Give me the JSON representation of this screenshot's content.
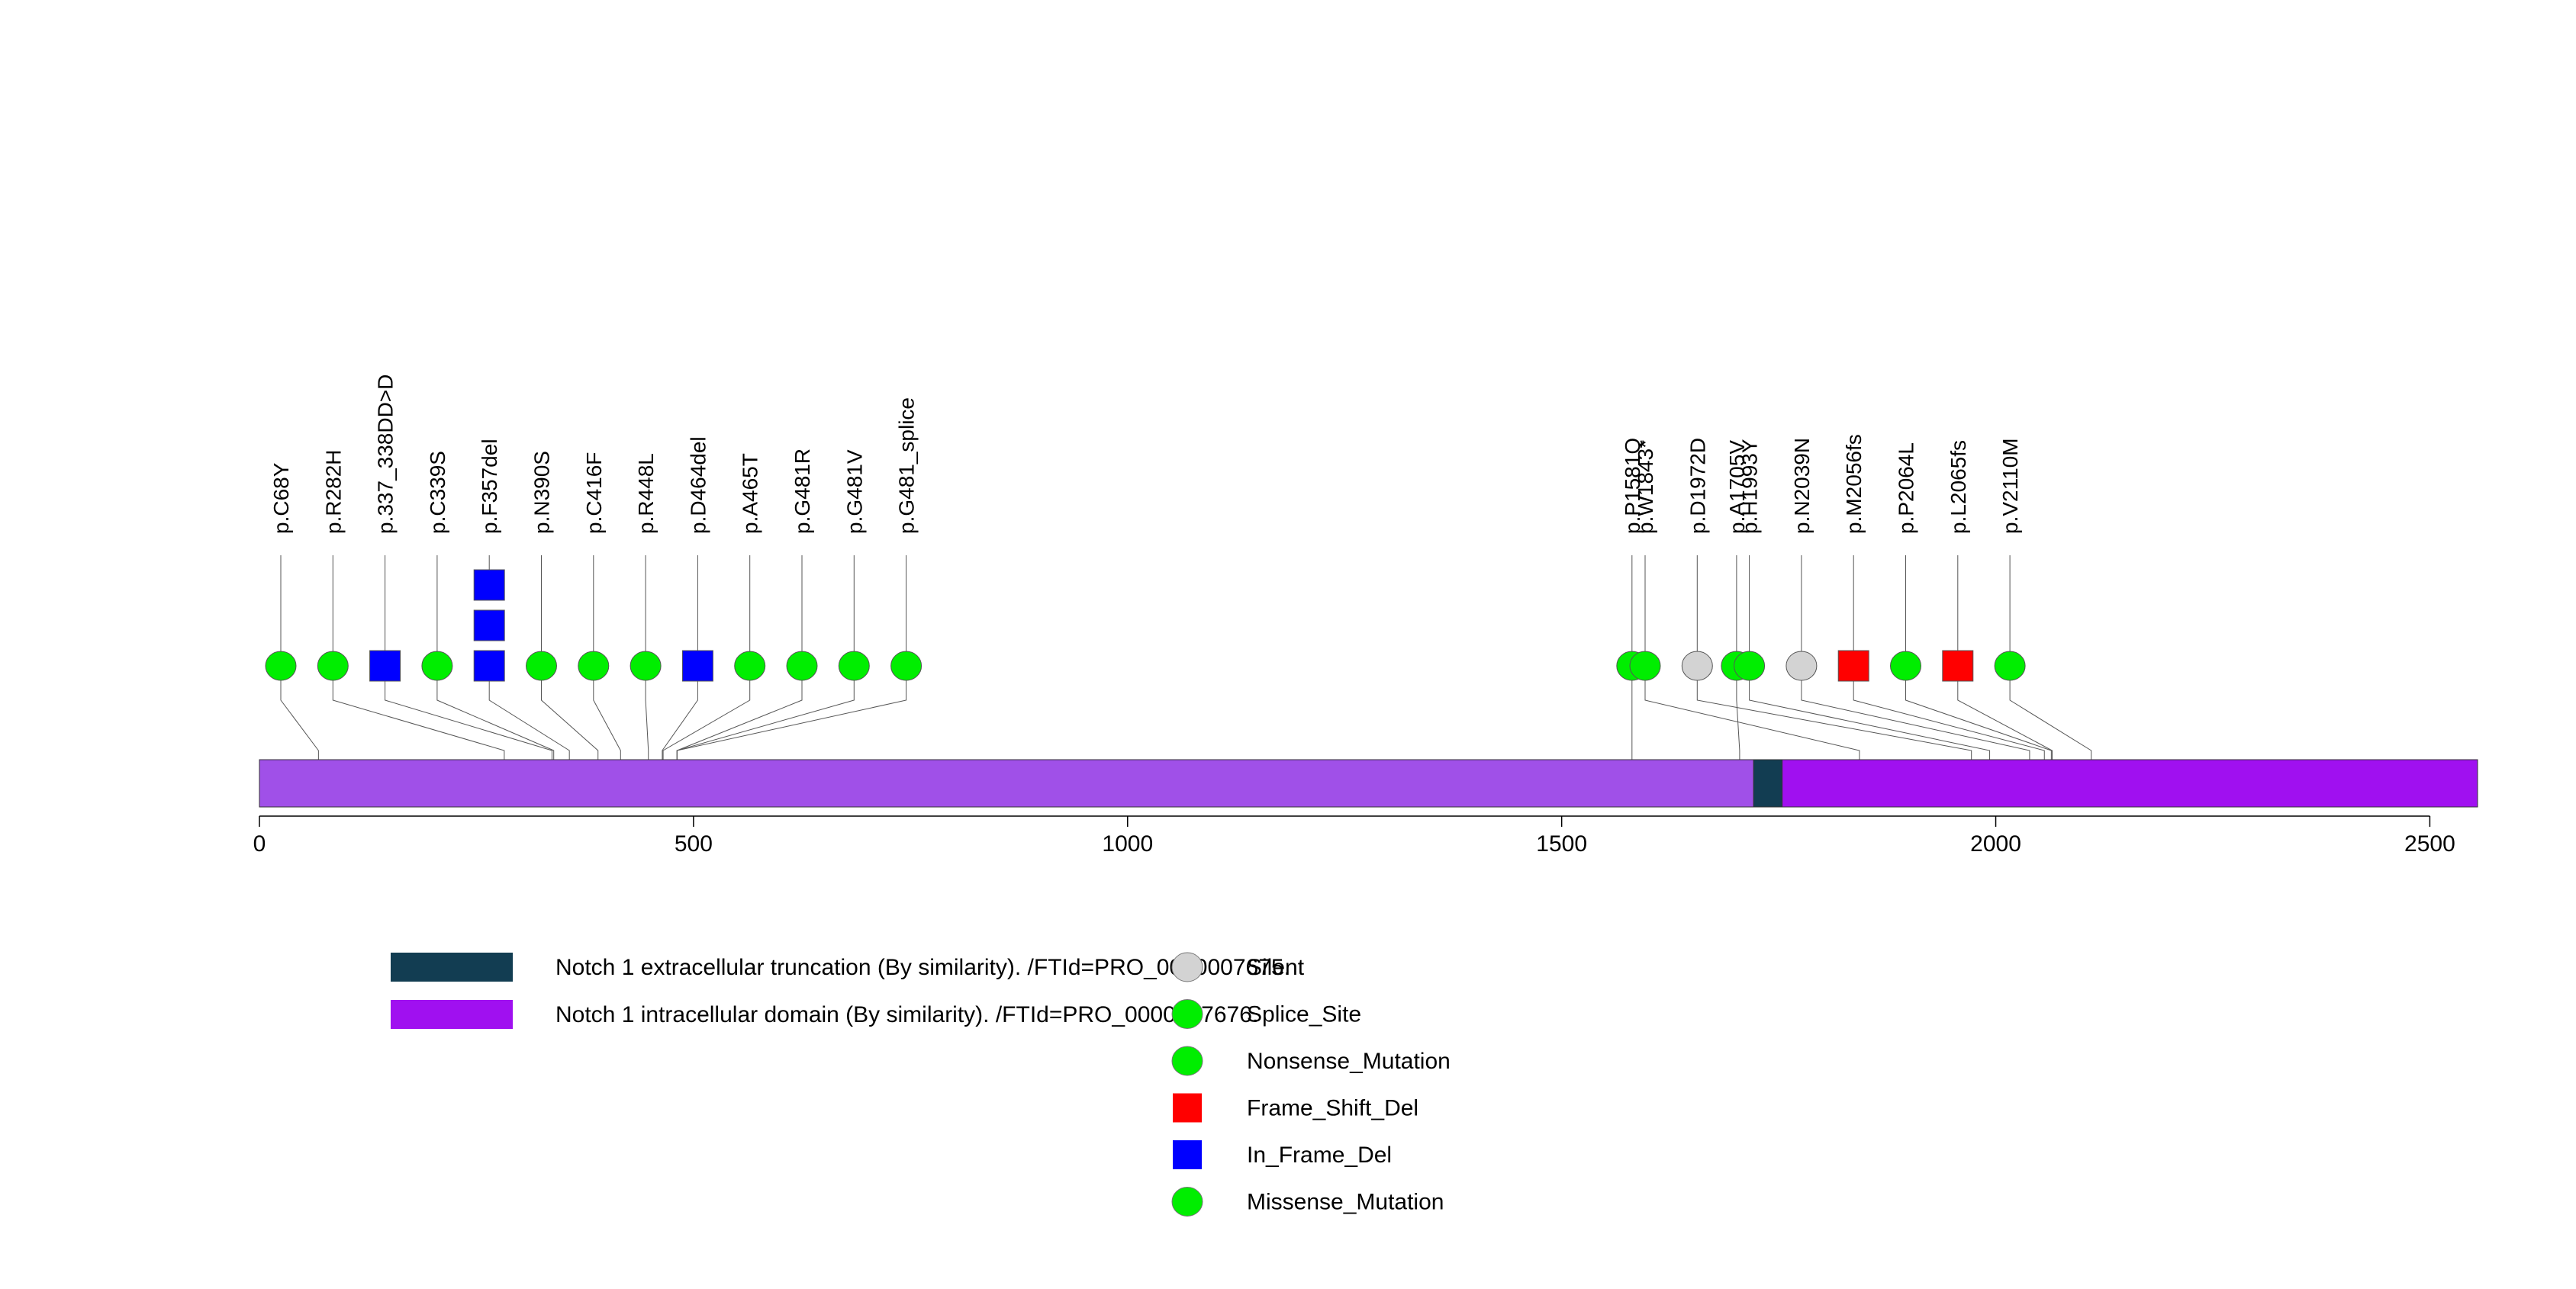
{
  "chart_data": {
    "type": "lollipop",
    "protein_length": 2555,
    "x_axis": {
      "min": 0,
      "max": 2555,
      "ticks": [
        0,
        500,
        1000,
        1500,
        2000,
        2500
      ]
    },
    "backbone_color": "#a050e8",
    "domains": [
      {
        "name": "Notch 1 extracellular truncation (By similarity). /FTId=PRO_0000007675.",
        "start": 1721,
        "end": 1754,
        "color": "#123d52"
      },
      {
        "name": "Notch 1 intracellular domain (By similarity). /FTId=PRO_0000007676.",
        "start": 1754,
        "end": 2555,
        "color": "#a010f0"
      }
    ],
    "mutations": [
      {
        "label": "p.C68Y",
        "position": 68,
        "type": "Missense_Mutation",
        "count": 1
      },
      {
        "label": "p.R282H",
        "position": 282,
        "type": "Missense_Mutation",
        "count": 1
      },
      {
        "label": "p.337_338DD>D",
        "position": 337,
        "type": "In_Frame_Del",
        "count": 1
      },
      {
        "label": "p.C339S",
        "position": 339,
        "type": "Missense_Mutation",
        "count": 1
      },
      {
        "label": "p.F357del",
        "position": 357,
        "type": "In_Frame_Del",
        "count": 3
      },
      {
        "label": "p.N390S",
        "position": 390,
        "type": "Missense_Mutation",
        "count": 1
      },
      {
        "label": "p.C416F",
        "position": 416,
        "type": "Missense_Mutation",
        "count": 1
      },
      {
        "label": "p.R448L",
        "position": 448,
        "type": "Missense_Mutation",
        "count": 1
      },
      {
        "label": "p.D464del",
        "position": 464,
        "type": "In_Frame_Del",
        "count": 1
      },
      {
        "label": "p.A465T",
        "position": 465,
        "type": "Missense_Mutation",
        "count": 1
      },
      {
        "label": "p.G481R",
        "position": 481,
        "type": "Missense_Mutation",
        "count": 1
      },
      {
        "label": "p.G481V",
        "position": 481,
        "type": "Missense_Mutation",
        "count": 1
      },
      {
        "label": "p.G481_splice",
        "position": 481,
        "type": "Splice_Site",
        "count": 1
      },
      {
        "label": "p.P1581Q",
        "position": 1581,
        "type": "Missense_Mutation",
        "count": 1
      },
      {
        "label": "p.A1705V",
        "position": 1705,
        "type": "Missense_Mutation",
        "count": 1
      },
      {
        "label": "p.W1843*",
        "position": 1843,
        "type": "Nonsense_Mutation",
        "count": 1
      },
      {
        "label": "p.D1972D",
        "position": 1972,
        "type": "Silent",
        "count": 1
      },
      {
        "label": "p.H1993Y",
        "position": 1993,
        "type": "Missense_Mutation",
        "count": 1
      },
      {
        "label": "p.N2039N",
        "position": 2039,
        "type": "Silent",
        "count": 1
      },
      {
        "label": "p.M2056fs",
        "position": 2056,
        "type": "Frame_Shift_Del",
        "count": 1
      },
      {
        "label": "p.P2064L",
        "position": 2064,
        "type": "Missense_Mutation",
        "count": 1
      },
      {
        "label": "p.L2065fs",
        "position": 2065,
        "type": "Frame_Shift_Del",
        "count": 1
      },
      {
        "label": "p.V2110M",
        "position": 2110,
        "type": "Missense_Mutation",
        "count": 1
      }
    ],
    "legend": [
      {
        "label": "Silent",
        "shape": "circle",
        "color": "#d3d3d3"
      },
      {
        "label": "Splice_Site",
        "shape": "circle",
        "color": "#00ee00"
      },
      {
        "label": "Nonsense_Mutation",
        "shape": "circle",
        "color": "#00ee00"
      },
      {
        "label": "Frame_Shift_Del",
        "shape": "square",
        "color": "#ff0000"
      },
      {
        "label": "In_Frame_Del",
        "shape": "square",
        "color": "#0000ff"
      },
      {
        "label": "Missense_Mutation",
        "shape": "circle",
        "color": "#00ee00"
      }
    ]
  }
}
